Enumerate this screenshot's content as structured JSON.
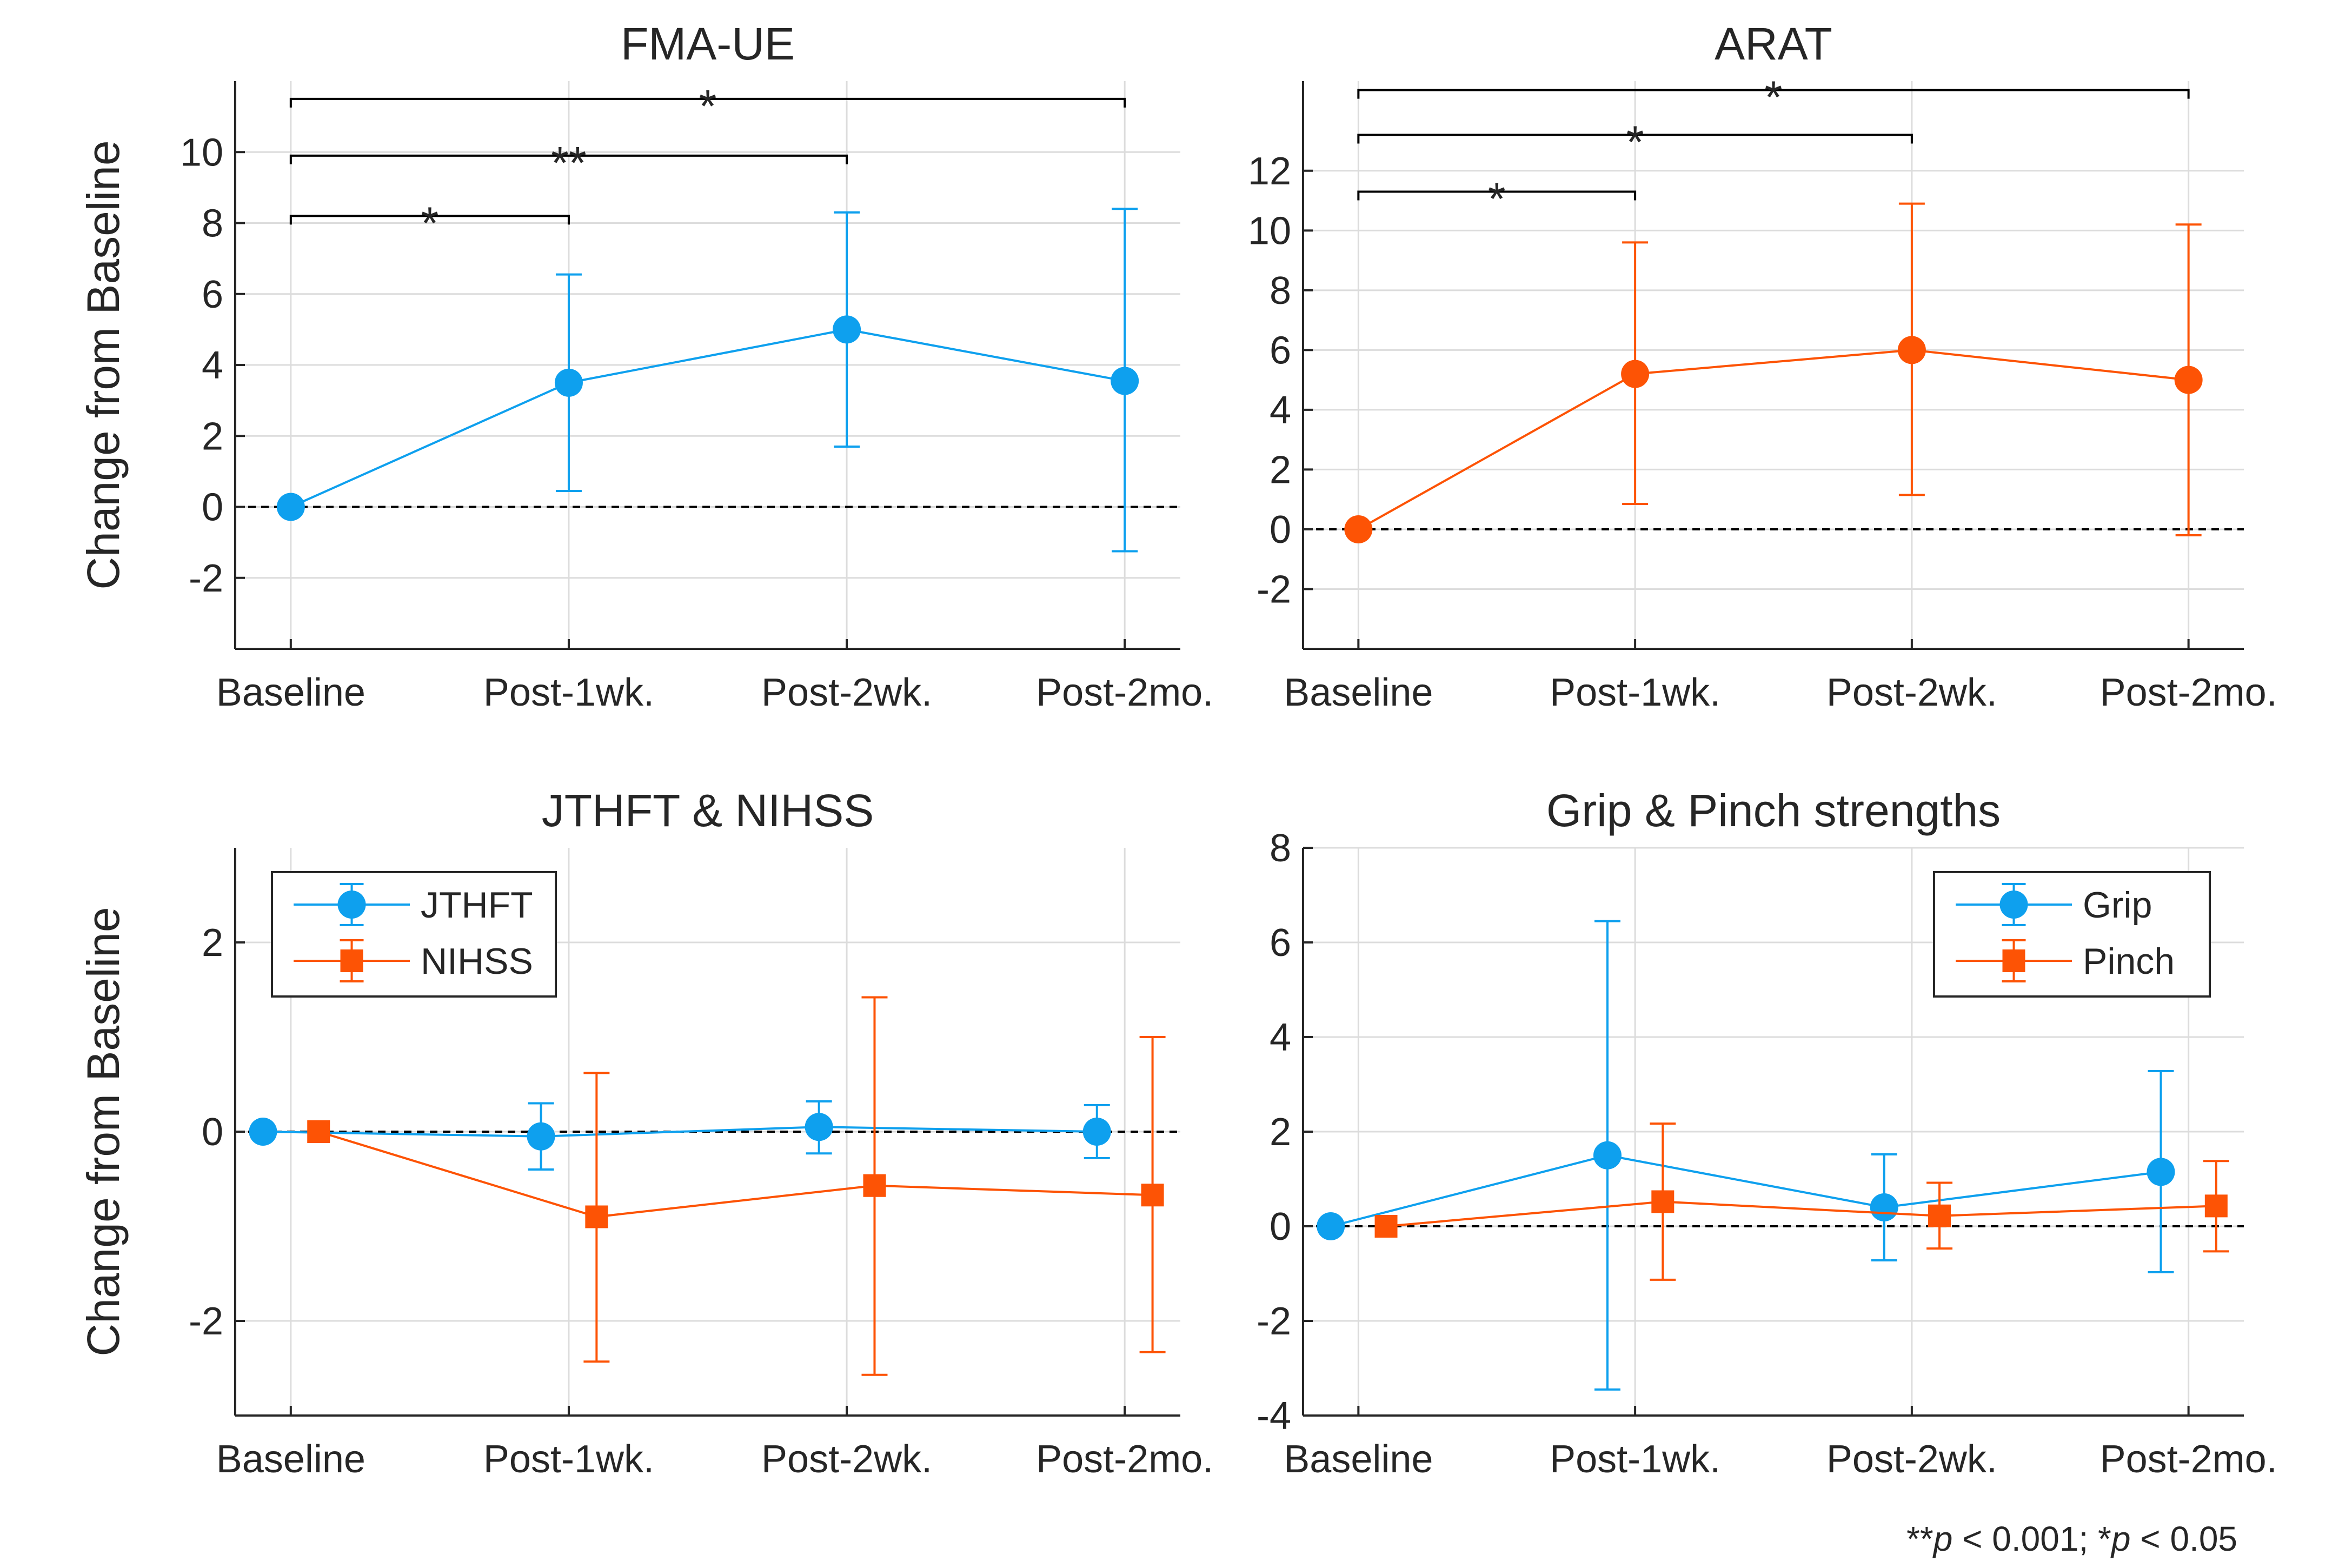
{
  "colors": {
    "blue": "#0ea0ee",
    "orange": "#fd5305",
    "axis": "#262626",
    "grid": "#dcdcdc"
  },
  "footnote": {
    "p1_prefix": "**",
    "p1_value": " < 0.001; *",
    "p2_value": " < 0.05",
    "p_symbol": "p"
  },
  "chart_data": [
    {
      "type": "line",
      "title": "FMA-UE",
      "ylabel": "Change from Baseline",
      "categories": [
        "Baseline",
        "Post-1wk.",
        "Post-2wk.",
        "Post-2mo."
      ],
      "ylim": [
        -4,
        12
      ],
      "yticks": [
        -2,
        0,
        2,
        4,
        6,
        8,
        10
      ],
      "grid": true,
      "series": [
        {
          "color": "#0ea0ee",
          "marker": "circle",
          "offset": 0,
          "values": [
            0,
            3.5,
            5.0,
            3.55
          ],
          "err_low": [
            0,
            0.45,
            1.7,
            -1.25
          ],
          "err_high": [
            0,
            6.55,
            8.3,
            8.4
          ]
        }
      ],
      "significance": [
        {
          "from": 0,
          "to": 1,
          "y": 8.2,
          "label": "*"
        },
        {
          "from": 0,
          "to": 2,
          "y": 9.9,
          "label": "**"
        },
        {
          "from": 0,
          "to": 3,
          "y": 11.5,
          "label": "*"
        }
      ]
    },
    {
      "type": "line",
      "title": "ARAT",
      "ylabel": "",
      "categories": [
        "Baseline",
        "Post-1wk.",
        "Post-2wk.",
        "Post-2mo."
      ],
      "ylim": [
        -4,
        15
      ],
      "yticks": [
        -2,
        0,
        2,
        4,
        6,
        8,
        10,
        12
      ],
      "grid": true,
      "series": [
        {
          "color": "#fd5305",
          "marker": "circle",
          "offset": 0,
          "values": [
            0,
            5.2,
            6.0,
            5.0
          ],
          "err_low": [
            0,
            0.85,
            1.15,
            -0.2
          ],
          "err_high": [
            0,
            9.6,
            10.9,
            10.2
          ]
        }
      ],
      "significance": [
        {
          "from": 0,
          "to": 1,
          "y": 11.3,
          "label": "*"
        },
        {
          "from": 0,
          "to": 2,
          "y": 13.2,
          "label": "*"
        },
        {
          "from": 0,
          "to": 3,
          "y": 14.7,
          "label": "*"
        }
      ]
    },
    {
      "type": "line",
      "title": "JTHFT & NIHSS",
      "ylabel": "Change from Baseline",
      "categories": [
        "Baseline",
        "Post-1wk.",
        "Post-2wk.",
        "Post-2mo."
      ],
      "ylim": [
        -3,
        3
      ],
      "yticks": [
        -2,
        0,
        2
      ],
      "grid": true,
      "legend": "top-left",
      "series": [
        {
          "name": "JTHFT",
          "color": "#0ea0ee",
          "marker": "circle",
          "offset": -0.1,
          "values": [
            0,
            -0.05,
            0.05,
            0.0
          ],
          "err_low": [
            0,
            -0.4,
            -0.23,
            -0.28
          ],
          "err_high": [
            0,
            0.3,
            0.32,
            0.28
          ]
        },
        {
          "name": "NIHSS",
          "color": "#fd5305",
          "marker": "square",
          "offset": 0.1,
          "values": [
            0,
            -0.9,
            -0.57,
            -0.67
          ],
          "err_low": [
            0,
            -2.43,
            -2.57,
            -2.33
          ],
          "err_high": [
            0,
            0.62,
            1.42,
            1.0
          ]
        }
      ]
    },
    {
      "type": "line",
      "title": "Grip & Pinch strengths",
      "ylabel": "",
      "categories": [
        "Baseline",
        "Post-1wk.",
        "Post-2wk.",
        "Post-2mo."
      ],
      "ylim": [
        -4,
        8
      ],
      "yticks": [
        -4,
        -2,
        0,
        2,
        4,
        6,
        8
      ],
      "grid": true,
      "legend": "top-right",
      "series": [
        {
          "name": "Grip",
          "color": "#0ea0ee",
          "marker": "circle",
          "offset": -0.1,
          "values": [
            0,
            1.5,
            0.4,
            1.15
          ],
          "err_low": [
            0,
            -3.45,
            -0.72,
            -0.97
          ],
          "err_high": [
            0,
            6.45,
            1.52,
            3.28
          ]
        },
        {
          "name": "Pinch",
          "color": "#fd5305",
          "marker": "square",
          "offset": 0.1,
          "values": [
            0,
            0.52,
            0.22,
            0.43
          ],
          "err_low": [
            0,
            -1.13,
            -0.47,
            -0.53
          ],
          "err_high": [
            0,
            2.17,
            0.92,
            1.38
          ]
        }
      ]
    }
  ]
}
